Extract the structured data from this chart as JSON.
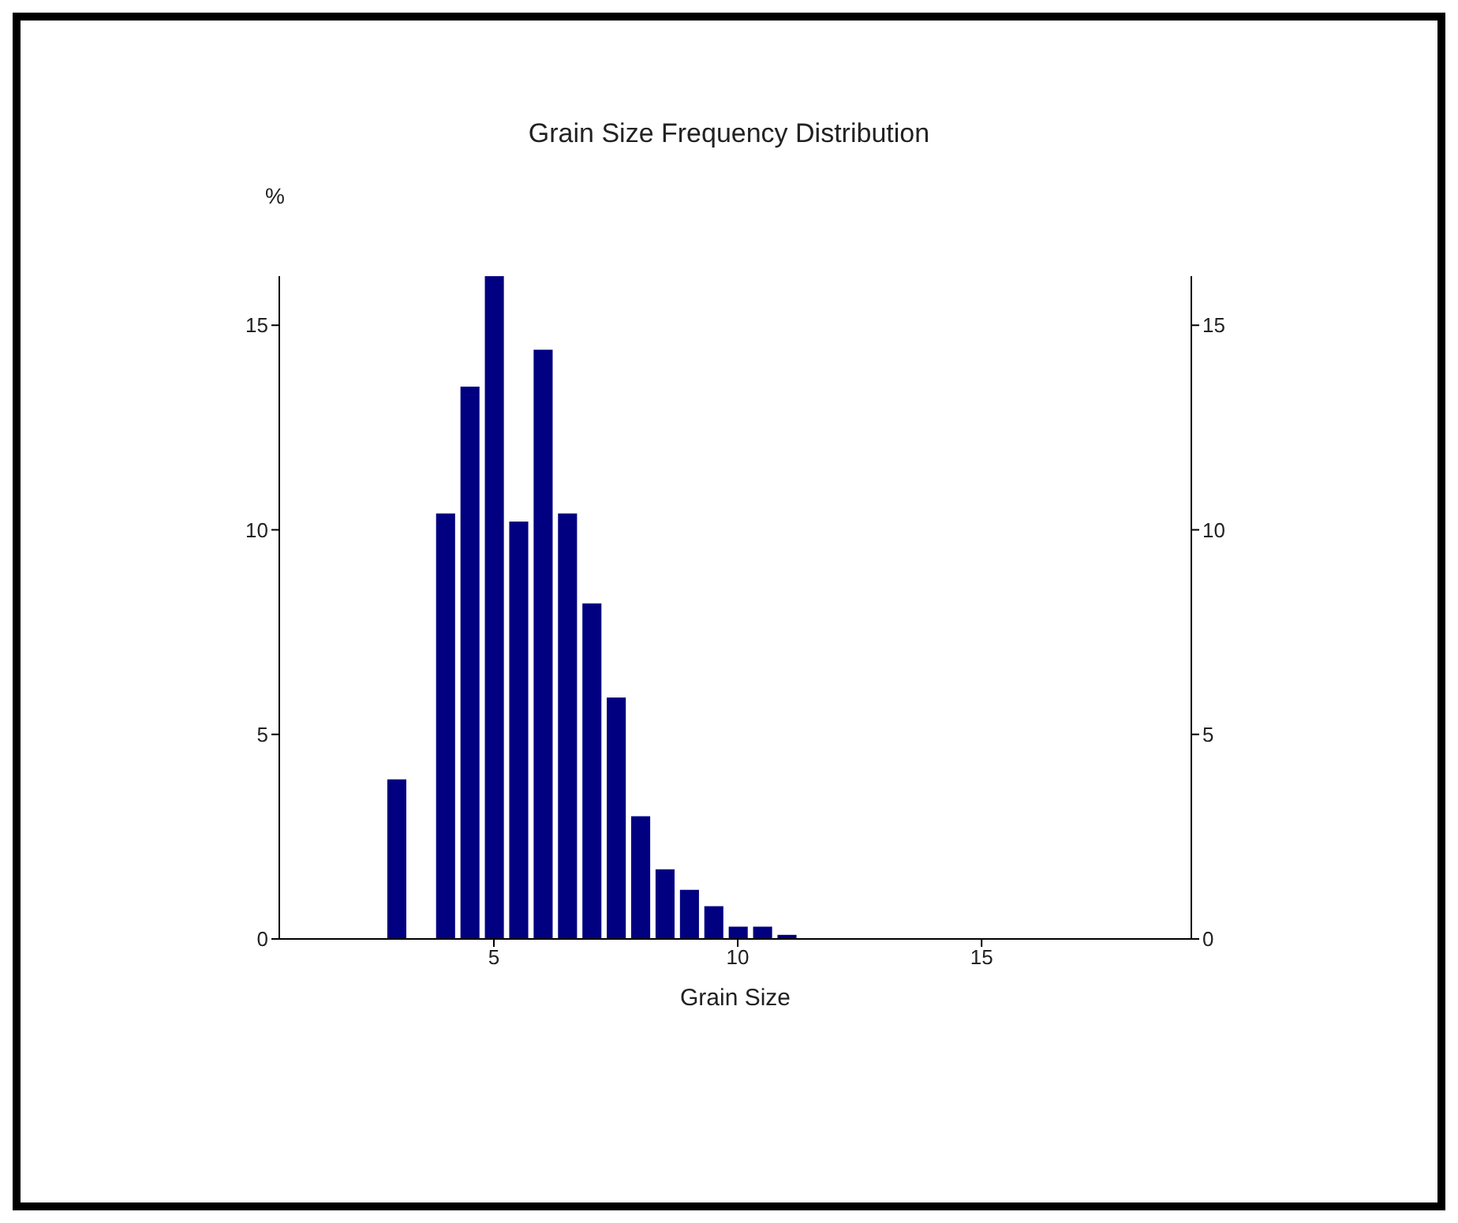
{
  "chart_data": {
    "type": "histogram",
    "title": "Grain Size Frequency Distribution",
    "xlabel": "Grain Size",
    "ylabel": "%",
    "bins": [
      2.75,
      3.25,
      3.75,
      4.25,
      4.75,
      5.25,
      5.75,
      6.25,
      6.75,
      7.25,
      7.75,
      8.25,
      8.75,
      9.25,
      9.75,
      10.25,
      10.75,
      11.25
    ],
    "values": [
      3.9,
      0,
      10.4,
      13.5,
      16.2,
      10.2,
      14.4,
      10.4,
      8.2,
      5.9,
      3.0,
      1.7,
      1.2,
      0.8,
      0.3,
      0.3,
      0.1
    ],
    "color": "#000080",
    "xlim": [
      0.6,
      19.3
    ],
    "xticks": [
      5,
      10,
      15
    ],
    "ylim": [
      0,
      16.2
    ],
    "yticks": [
      0,
      5,
      10,
      15
    ],
    "y2lim": [
      0,
      16.2
    ],
    "y2ticks": [
      0,
      5,
      10,
      15
    ],
    "grid": false,
    "legend": false
  }
}
